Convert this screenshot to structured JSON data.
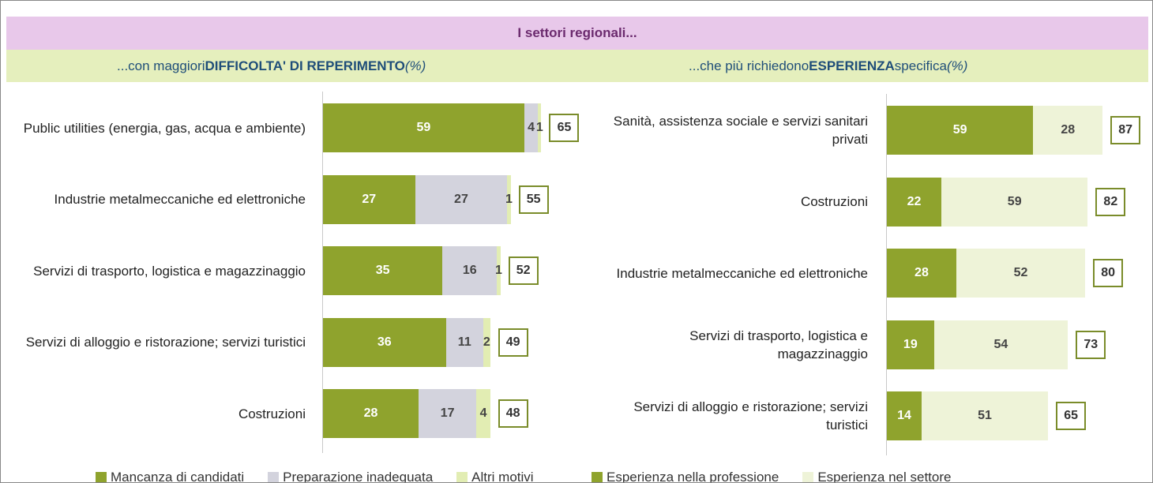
{
  "header": {
    "title": "I settori regionali..."
  },
  "chart_data": [
    {
      "type": "bar",
      "orientation": "horizontal",
      "stacked": true,
      "subtitle": {
        "prefix": "...con maggiori",
        "emphasis": "DIFFICOLTA' DI REPERIMENTO",
        "unit": "(%)"
      },
      "categories": [
        "Public utilities (energia, gas, acqua e ambiente)",
        "Industrie metalmeccaniche ed elettroniche",
        "Servizi di trasporto, logistica e magazzinaggio",
        "Servizi di alloggio e ristorazione; servizi turistici",
        "Costruzioni"
      ],
      "series": [
        {
          "name": "Mancanza di candidati",
          "color": "#8fa32d",
          "values": [
            59,
            27,
            35,
            36,
            28
          ]
        },
        {
          "name": "Preparazione inadeguata",
          "color": "#d3d3dd",
          "values": [
            4,
            27,
            16,
            11,
            17
          ]
        },
        {
          "name": "Altri motivi",
          "color": "#e2edb3",
          "values": [
            1,
            1,
            1,
            2,
            4
          ]
        }
      ],
      "totals": [
        65,
        55,
        52,
        49,
        48
      ],
      "xlim": [
        0,
        75
      ]
    },
    {
      "type": "bar",
      "orientation": "horizontal",
      "stacked": true,
      "subtitle": {
        "prefix": "...che più richiedono",
        "emphasis": "ESPERIENZA",
        "suffix": "specifica",
        "unit": "(%)"
      },
      "categories": [
        "Sanità, assistenza sociale e servizi sanitari privati",
        "Costruzioni",
        "Industrie metalmeccaniche ed elettroniche",
        "Servizi di trasporto, logistica e magazzinaggio",
        "Servizi di alloggio e ristorazione; servizi turistici"
      ],
      "series": [
        {
          "name": "Esperienza nella professione",
          "color": "#8fa32d",
          "values": [
            59,
            22,
            28,
            19,
            14
          ]
        },
        {
          "name": "Esperienza nel settore",
          "color": "#eef3d8",
          "values": [
            28,
            59,
            52,
            54,
            51
          ]
        }
      ],
      "totals": [
        87,
        82,
        80,
        73,
        65
      ],
      "xlim": [
        0,
        100
      ]
    }
  ]
}
